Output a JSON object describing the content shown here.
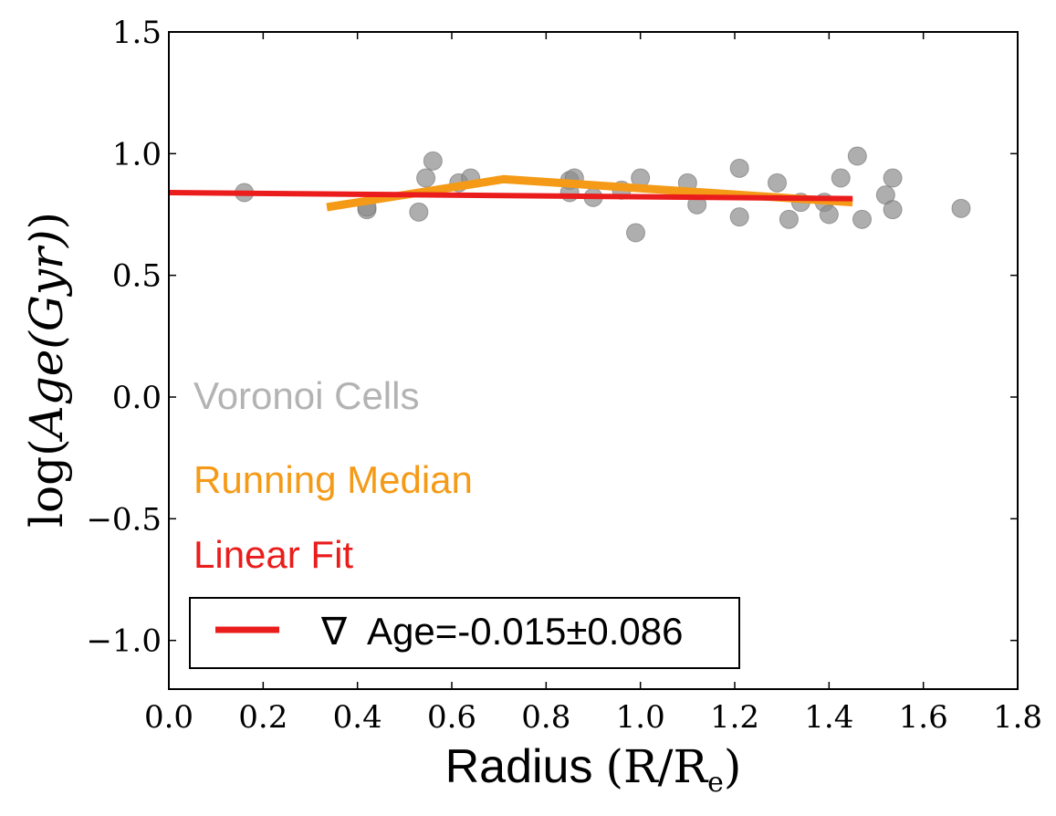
{
  "chart_data": {
    "type": "scatter",
    "title": "",
    "xlabel": {
      "text": "Radius",
      "math": "(R/R",
      "math_sub": "e",
      "math_close": ")"
    },
    "ylabel": {
      "prefix": "log(",
      "math": "Age(Gyr)",
      "suffix": ")"
    },
    "xlim": [
      0.0,
      1.8
    ],
    "ylim": [
      -1.2,
      1.5
    ],
    "xticks": [
      0.0,
      0.2,
      0.4,
      0.6,
      0.8,
      1.0,
      1.2,
      1.4,
      1.6,
      1.8
    ],
    "yticks": [
      -1.0,
      -0.5,
      0.0,
      0.5,
      1.0,
      1.5
    ],
    "xtick_labels": [
      "0.0",
      "0.2",
      "0.4",
      "0.6",
      "0.8",
      "1.0",
      "1.2",
      "1.4",
      "1.6",
      "1.8"
    ],
    "ytick_labels": [
      "−1.0",
      "−0.5",
      "0.0",
      "0.5",
      "1.0",
      "1.5"
    ],
    "grid": false,
    "series": [
      {
        "name": "Voronoi Cells",
        "kind": "scatter",
        "color": "#8c8c8c",
        "points": [
          [
            0.16,
            0.84
          ],
          [
            0.42,
            0.77
          ],
          [
            0.42,
            0.78
          ],
          [
            0.53,
            0.76
          ],
          [
            0.545,
            0.9
          ],
          [
            0.56,
            0.97
          ],
          [
            0.615,
            0.88
          ],
          [
            0.64,
            0.9
          ],
          [
            0.85,
            0.89
          ],
          [
            0.85,
            0.84
          ],
          [
            0.86,
            0.9
          ],
          [
            0.9,
            0.82
          ],
          [
            0.96,
            0.85
          ],
          [
            0.99,
            0.675
          ],
          [
            1.0,
            0.9
          ],
          [
            1.1,
            0.88
          ],
          [
            1.12,
            0.79
          ],
          [
            1.21,
            0.94
          ],
          [
            1.21,
            0.74
          ],
          [
            1.29,
            0.88
          ],
          [
            1.315,
            0.73
          ],
          [
            1.34,
            0.8
          ],
          [
            1.39,
            0.8
          ],
          [
            1.4,
            0.75
          ],
          [
            1.425,
            0.9
          ],
          [
            1.46,
            0.99
          ],
          [
            1.47,
            0.73
          ],
          [
            1.52,
            0.83
          ],
          [
            1.535,
            0.9
          ],
          [
            1.535,
            0.77
          ],
          [
            1.68,
            0.775
          ]
        ]
      },
      {
        "name": "Running Median",
        "kind": "line",
        "color": "#f59a17",
        "points": [
          [
            0.335,
            0.78
          ],
          [
            0.71,
            0.895
          ],
          [
            1.45,
            0.8
          ]
        ]
      },
      {
        "name": "Linear Fit",
        "kind": "line",
        "color": "#ea1c1c",
        "points": [
          [
            0.0,
            0.84
          ],
          [
            1.45,
            0.815
          ]
        ]
      }
    ],
    "annotations": [
      {
        "text": "Voronoi Cells",
        "color": "#b3b3b3"
      },
      {
        "text": "Running Median",
        "color": "#f59a17"
      },
      {
        "text": "Linear Fit",
        "color": "#ea1c1c"
      }
    ],
    "legend": {
      "position": "lower-left",
      "entries": [
        {
          "symbol": "∇",
          "label": "Age=-0.015±0.086",
          "color": "#ea1c1c"
        }
      ]
    }
  }
}
